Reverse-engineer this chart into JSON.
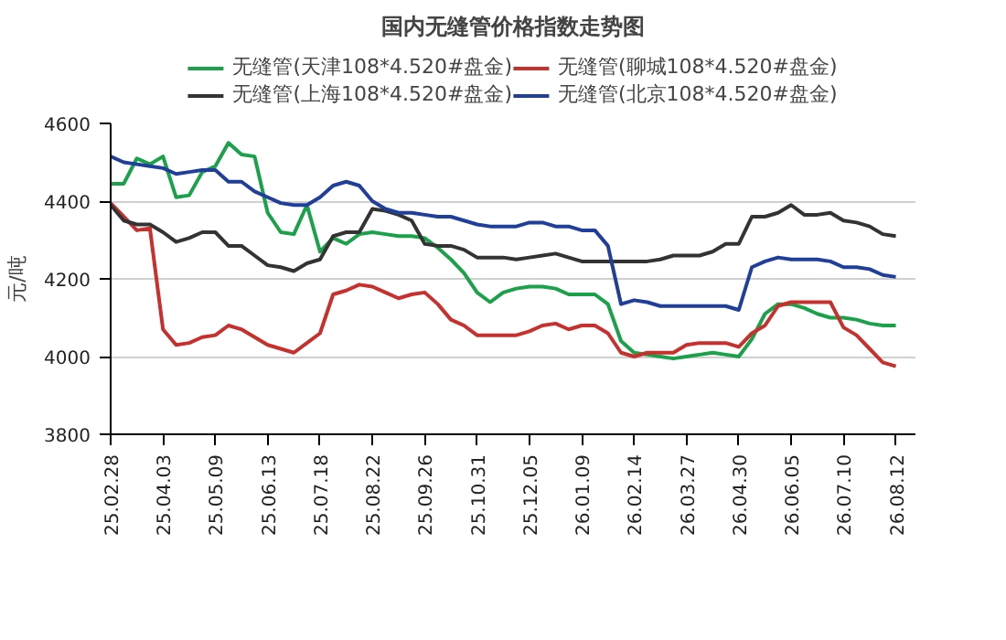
{
  "chart_data": {
    "type": "line",
    "title": "国内无缝管价格指数走势图",
    "ylabel": "元/吨",
    "categories": [
      "25.02.28",
      null,
      null,
      null,
      "25.04.03",
      null,
      null,
      null,
      "25.05.09",
      null,
      null,
      null,
      "25.06.13",
      null,
      null,
      null,
      "25.07.18",
      null,
      null,
      null,
      "25.08.22",
      null,
      null,
      null,
      "25.09.26",
      null,
      null,
      null,
      "25.10.31",
      null,
      null,
      null,
      "25.12.05",
      null,
      null,
      null,
      "26.01.09",
      null,
      null,
      null,
      "26.02.14",
      null,
      null,
      null,
      "26.03.27",
      null,
      null,
      null,
      "26.04.30",
      null,
      null,
      null,
      "26.06.05",
      null,
      null,
      null,
      "26.07.10",
      null,
      null,
      null,
      "26.08.12"
    ],
    "ylim": [
      3800,
      4600
    ],
    "yticks": [
      3800,
      4000,
      4200,
      4400,
      4600
    ],
    "grid": "y",
    "legend": "top",
    "marker": "none",
    "line_style": "solid",
    "series": [
      {
        "name": "无缝管(天津108*4.520#盘金)",
        "color": "#1ba14a",
        "values": [
          4445,
          4445,
          4510,
          4495,
          4515,
          4410,
          4415,
          4475,
          4490,
          4550,
          4520,
          4515,
          4370,
          4320,
          4315,
          4390,
          4270,
          4305,
          4290,
          4315,
          4320,
          4315,
          4310,
          4310,
          4305,
          4280,
          4250,
          4215,
          4165,
          4140,
          4165,
          4175,
          4180,
          4180,
          4175,
          4160,
          4160,
          4160,
          4135,
          4040,
          4010,
          4005,
          4000,
          3995,
          4000,
          4005,
          4010,
          4005,
          4000,
          4045,
          4110,
          4135,
          4135,
          4125,
          4110,
          4100,
          4100,
          4095,
          4085,
          4080,
          4080
        ]
      },
      {
        "name": "无缝管(聊城108*4.520#盘金)",
        "color": "#c8302e",
        "values": [
          4395,
          4360,
          4325,
          4330,
          4070,
          4030,
          4035,
          4050,
          4055,
          4080,
          4070,
          4050,
          4030,
          4020,
          4010,
          4035,
          4060,
          4160,
          4170,
          4185,
          4180,
          4165,
          4150,
          4160,
          4165,
          4135,
          4095,
          4080,
          4055,
          4055,
          4055,
          4055,
          4065,
          4080,
          4085,
          4070,
          4080,
          4080,
          4060,
          4010,
          4000,
          4010,
          4010,
          4010,
          4030,
          4035,
          4035,
          4035,
          4025,
          4060,
          4080,
          4130,
          4140,
          4140,
          4140,
          4140,
          4075,
          4055,
          4020,
          3985,
          3975
        ]
      },
      {
        "name": "无缝管(上海108*4.520#盘金)",
        "color": "#333333",
        "values": [
          4390,
          4350,
          4340,
          4340,
          4320,
          4295,
          4305,
          4320,
          4320,
          4285,
          4285,
          4260,
          4235,
          4230,
          4220,
          4240,
          4250,
          4310,
          4320,
          4320,
          4380,
          4375,
          4365,
          4350,
          4290,
          4285,
          4285,
          4275,
          4255,
          4255,
          4255,
          4250,
          4255,
          4260,
          4265,
          4255,
          4245,
          4245,
          4245,
          4245,
          4245,
          4245,
          4250,
          4260,
          4260,
          4260,
          4270,
          4290,
          4290,
          4360,
          4360,
          4370,
          4390,
          4365,
          4365,
          4370,
          4350,
          4345,
          4335,
          4315,
          4310
        ]
      },
      {
        "name": "无缝管(北京108*4.520#盘金)",
        "color": "#1f3f9a",
        "values": [
          4515,
          4500,
          4495,
          4490,
          4485,
          4470,
          4475,
          4480,
          4480,
          4450,
          4450,
          4425,
          4410,
          4395,
          4390,
          4390,
          4410,
          4440,
          4450,
          4440,
          4400,
          4380,
          4370,
          4370,
          4365,
          4360,
          4360,
          4350,
          4340,
          4335,
          4335,
          4335,
          4345,
          4345,
          4335,
          4335,
          4325,
          4325,
          4285,
          4135,
          4145,
          4140,
          4130,
          4130,
          4130,
          4130,
          4130,
          4130,
          4120,
          4230,
          4245,
          4255,
          4250,
          4250,
          4250,
          4245,
          4230,
          4230,
          4225,
          4210,
          4205
        ]
      }
    ]
  }
}
